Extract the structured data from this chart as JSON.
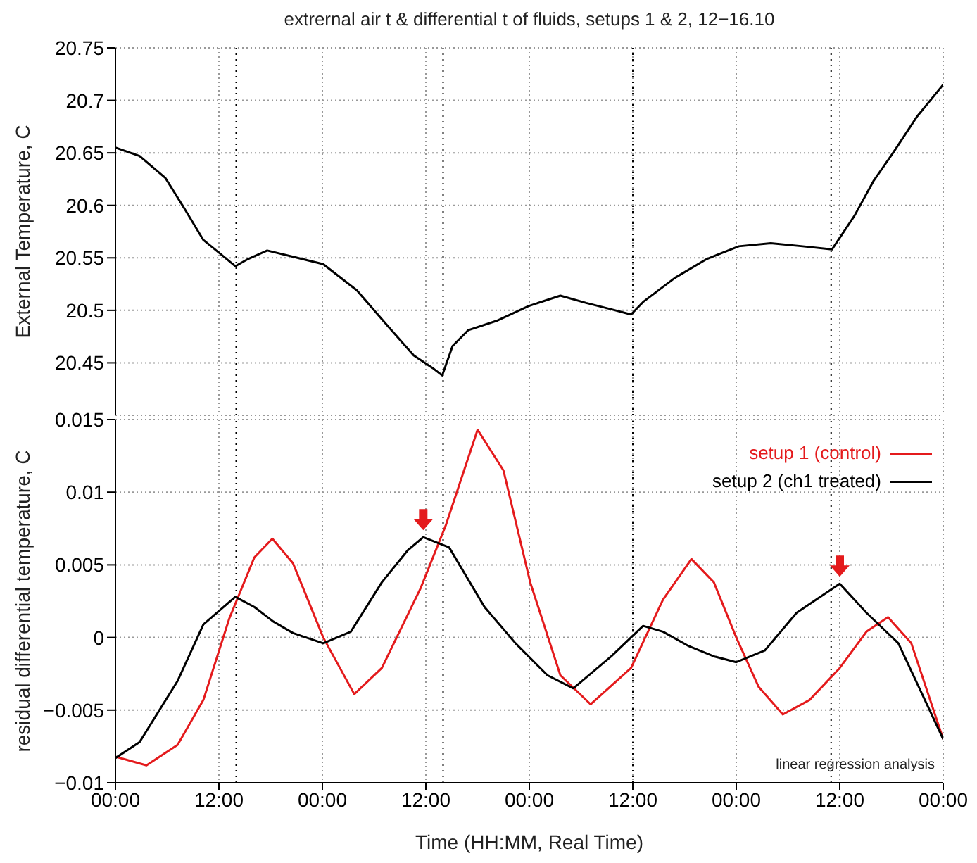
{
  "chart_data": [
    {
      "type": "line",
      "title": "extrernal air t & differential t of fluids, setups 1 & 2, 12−16.10",
      "ylabel": "External Temperature, C",
      "x": [
        "--10-12T00:00",
        "--10-12T02:48",
        "--10-12T05:48",
        "--10-12T08:00",
        "--10-12T10:12",
        "--10-12T12:00",
        "--10-12T13:54",
        "--10-12T15:24",
        "--10-12T17:36",
        "--10-12T20:36",
        "--10-13T00:06",
        "--10-13T04:00",
        "--10-13T07:42",
        "--10-13T10:36",
        "--10-13T12:48",
        "--10-13T13:54",
        "--10-13T15:06",
        "--10-13T16:54",
        "--10-13T20:12",
        "--10-13T23:54",
        "--10-14T03:36",
        "--10-14T06:36",
        "--10-14T09:30",
        "--10-14T11:48",
        "--10-14T13:12",
        "--10-14T16:54",
        "--10-14T20:36",
        "--10-15T00:18",
        "--10-15T04:00",
        "--10-15T07:42",
        "--10-15T11:06",
        "--10-15T13:42",
        "--10-15T15:54",
        "--10-15T18:06",
        "--10-15T21:00",
        "--10-16T00:00"
      ],
      "series": [
        {
          "color": "#000000",
          "values": [
            20.655,
            20.647,
            20.626,
            20.597,
            20.567,
            20.555,
            20.542,
            20.549,
            20.557,
            20.551,
            20.544,
            20.519,
            20.484,
            20.457,
            20.445,
            20.438,
            20.466,
            20.481,
            20.49,
            20.504,
            20.514,
            20.507,
            20.501,
            20.496,
            20.508,
            20.531,
            20.549,
            20.561,
            20.564,
            20.561,
            20.558,
            20.59,
            20.623,
            20.649,
            20.685,
            20.715
          ]
        }
      ],
      "xlim": [
        "--10-12T00:00",
        "--10-16T00:00"
      ],
      "xticks": [
        {
          "value": "--10-12T00:00",
          "label": "00:00"
        },
        {
          "value": "--10-12T12:00",
          "label": "12:00"
        },
        {
          "value": "--10-13T00:00",
          "label": "00:00"
        },
        {
          "value": "--10-13T12:00",
          "label": "12:00"
        },
        {
          "value": "--10-14T00:00",
          "label": "00:00"
        },
        {
          "value": "--10-14T12:00",
          "label": "12:00"
        },
        {
          "value": "--10-15T00:00",
          "label": "00:00"
        },
        {
          "value": "--10-15T12:00",
          "label": "12:00"
        },
        {
          "value": "--10-16T00:00",
          "label": "00:00"
        }
      ],
      "ylim": [
        20.4,
        20.75
      ],
      "yticks": [
        20.45,
        20.5,
        20.55,
        20.6,
        20.65,
        20.7,
        20.75
      ],
      "ref_lines": [
        {
          "axis": "x",
          "value": "--10-12T14:00",
          "color": "#000000",
          "line_style": "dotted"
        },
        {
          "axis": "x",
          "value": "--10-13T14:00",
          "color": "#000000",
          "line_style": "dotted"
        },
        {
          "axis": "x",
          "value": "--10-14T12:00",
          "color": "#000000",
          "line_style": "dotted"
        },
        {
          "axis": "x",
          "value": "--10-15T11:00",
          "color": "#000000",
          "line_style": "dotted"
        }
      ],
      "grid": true,
      "tick_labels": "y"
    },
    {
      "type": "line",
      "xlabel": "Time (HH:MM, Real Time)",
      "ylabel": "residual differential temperature, C",
      "annotations": [
        "linear regression analysis"
      ],
      "series": [
        {
          "name": "setup 1 (control)",
          "color": "#e41a1c",
          "x": [
            "--10-12T00:00",
            "--10-12T03:36",
            "--10-12T07:12",
            "--10-12T10:12",
            "--10-12T13:12",
            "--10-12T16:06",
            "--10-12T18:12",
            "--10-12T20:36",
            "--10-13T00:06",
            "--10-13T03:42",
            "--10-13T06:54",
            "--10-13T11:24",
            "--10-13T14:18",
            "--10-13T18:00",
            "--10-13T21:00",
            "--10-14T00:06",
            "--10-14T03:36",
            "--10-14T07:06",
            "--10-14T11:48",
            "--10-14T15:30",
            "--10-14T18:48",
            "--10-14T21:24",
            "--10-15T00:00",
            "--10-15T02:36",
            "--10-15T05:24",
            "--10-15T08:30",
            "--10-15T12:00",
            "--10-15T15:06",
            "--10-15T17:36",
            "--10-15T20:18",
            "--10-16T00:00"
          ],
          "values": [
            -0.0082,
            -0.0088,
            -0.0074,
            -0.0043,
            0.0013,
            0.0055,
            0.0068,
            0.0051,
            0,
            -0.0039,
            -0.0021,
            0.0034,
            0.0077,
            0.0143,
            0.0115,
            0.0038,
            -0.0026,
            -0.0046,
            -0.0021,
            0.0026,
            0.0054,
            0.0038,
            0,
            -0.0034,
            -0.0053,
            -0.0043,
            -0.0021,
            0.0004,
            0.0014,
            -0.0004,
            -0.007
          ]
        },
        {
          "name": "setup 2 (ch1 treated)",
          "color": "#000000",
          "x": [
            "--10-12T00:00",
            "--10-12T02:48",
            "--10-12T07:12",
            "--10-12T10:12",
            "--10-12T13:54",
            "--10-12T16:06",
            "--10-12T18:18",
            "--10-12T20:36",
            "--10-13T00:06",
            "--10-13T03:18",
            "--10-13T06:54",
            "--10-13T09:54",
            "--10-13T11:42",
            "--10-13T14:42",
            "--10-13T18:48",
            "--10-13T22:24",
            "--10-14T02:06",
            "--10-14T05:06",
            "--10-14T09:30",
            "--10-14T13:12",
            "--10-14T15:30",
            "--10-14T18:30",
            "--10-14T21:24",
            "--10-15T00:00",
            "--10-15T03:18",
            "--10-15T07:00",
            "--10-15T12:00",
            "--10-15T15:06",
            "--10-15T18:48",
            "--10-16T00:00"
          ],
          "values": [
            -0.0083,
            -0.0072,
            -0.003,
            0.0009,
            0.0028,
            0.0021,
            0.0011,
            0.0003,
            -0.0004,
            0.0004,
            0.0038,
            0.006,
            0.0069,
            0.0062,
            0.0021,
            -0.0004,
            -0.0026,
            -0.0035,
            -0.0013,
            0.0008,
            0.0004,
            -0.0006,
            -0.0013,
            -0.0017,
            -0.0009,
            0.0017,
            0.0037,
            0.0017,
            -0.0004,
            -0.007
          ]
        }
      ],
      "xlim": [
        "--10-12T00:00",
        "--10-16T00:00"
      ],
      "xticks": [
        {
          "value": "--10-12T00:00",
          "label": "00:00"
        },
        {
          "value": "--10-12T12:00",
          "label": "12:00"
        },
        {
          "value": "--10-13T00:00",
          "label": "00:00"
        },
        {
          "value": "--10-13T12:00",
          "label": "12:00"
        },
        {
          "value": "--10-14T00:00",
          "label": "00:00"
        },
        {
          "value": "--10-14T12:00",
          "label": "12:00"
        },
        {
          "value": "--10-15T00:00",
          "label": "00:00"
        },
        {
          "value": "--10-15T12:00",
          "label": "12:00"
        },
        {
          "value": "--10-16T00:00",
          "label": "00:00"
        }
      ],
      "ylim": [
        -0.01,
        0.015
      ],
      "yticks": [
        {
          "value": -0.01,
          "label": "−0.01"
        },
        {
          "value": -0.005,
          "label": "−0.005"
        },
        0,
        0.005,
        0.01,
        0.015
      ],
      "ref_lines": [
        {
          "axis": "x",
          "value": "--10-12T14:00",
          "color": "#000000",
          "line_style": "dotted"
        },
        {
          "axis": "x",
          "value": "--10-13T14:00",
          "color": "#000000",
          "line_style": "dotted"
        },
        {
          "axis": "x",
          "value": "--10-14T12:00",
          "color": "#000000",
          "line_style": "dotted"
        },
        {
          "axis": "x",
          "value": "--10-15T11:00",
          "color": "#000000",
          "line_style": "dotted"
        }
      ],
      "grid": true,
      "legend": "top right"
    }
  ]
}
